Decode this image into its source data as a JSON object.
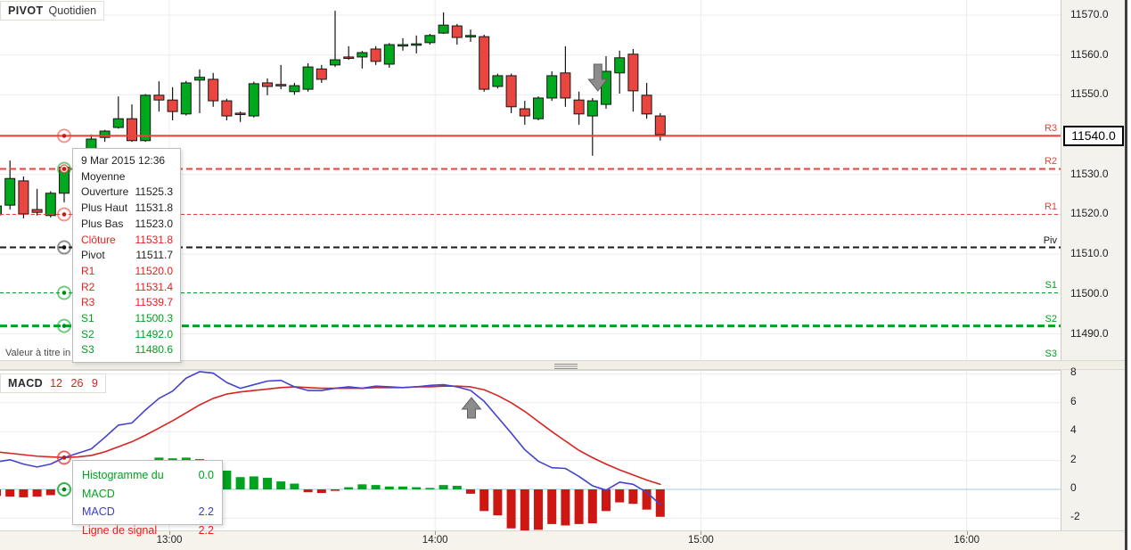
{
  "indicator_chip": {
    "title": "PIVOT",
    "subtitle": "Quotidien"
  },
  "macd_chip": {
    "title": "MACD",
    "params": "12 26 9"
  },
  "disclaimer": "Valeur à titre in",
  "current_price": "11540.0",
  "colors": {
    "candle_up": "#00a81e",
    "candle_down": "#e8463e",
    "candle_stroke": "#161616",
    "resistance": "#e8423c",
    "support": "#00a21f",
    "pivot": "#1a1a1a",
    "macd_line": "#4343cf",
    "signal_line": "#d62420",
    "hist_up": "#00a21f",
    "hist_down": "#cc1712",
    "grid": "#ececec",
    "zero_line": "#a9c7e4",
    "arrow": "#8c8c8c",
    "tooltip_red": "#ee1c1c",
    "tooltip_green": "#00a21f",
    "tooltip_blue": "#3c3ccc",
    "tooltip_black": "#222222"
  },
  "price_tooltip": {
    "rows": [
      {
        "label": "9 Mar 2015 12:36",
        "value": "",
        "color": "#222222"
      },
      {
        "label": "Moyenne",
        "value": "",
        "color": "#222222"
      },
      {
        "label": "Ouverture",
        "value": "11525.3",
        "color": "#222222"
      },
      {
        "label": "Plus Haut",
        "value": "11531.8",
        "color": "#222222"
      },
      {
        "label": "Plus Bas",
        "value": "11523.0",
        "color": "#222222"
      },
      {
        "label": "Clôture",
        "value": "11531.8",
        "color": "#ee1c1c"
      },
      {
        "label": "Pivot",
        "value": "11511.7",
        "color": "#222222"
      },
      {
        "label": "R1",
        "value": "11520.0",
        "color": "#ee1c1c"
      },
      {
        "label": "R2",
        "value": "11531.4",
        "color": "#ee1c1c"
      },
      {
        "label": "R3",
        "value": "11539.7",
        "color": "#ee1c1c"
      },
      {
        "label": "S1",
        "value": "11500.3",
        "color": "#00a21f"
      },
      {
        "label": "S2",
        "value": "11492.0",
        "color": "#00a21f"
      },
      {
        "label": "S3",
        "value": "11480.6",
        "color": "#00a21f"
      }
    ]
  },
  "macd_tooltip": {
    "rows": [
      {
        "label": "Histogramme du MACD",
        "value": "0.0",
        "color": "#00a21f"
      },
      {
        "label": "MACD",
        "value": "2.2",
        "color": "#3c3ccc"
      },
      {
        "label": "Ligne de signal",
        "value": "2.2",
        "color": "#ee1c1c"
      }
    ]
  },
  "time_axis": {
    "labels": [
      "13:00",
      "14:00",
      "15:00",
      "16:00"
    ],
    "minutes": [
      780,
      840,
      900,
      960
    ]
  },
  "crosshair_markers": {
    "candle_index": 5,
    "price": [
      {
        "price": 11539.7,
        "ring": "#e8423c",
        "dot": "#cc1712"
      },
      {
        "price": 11531.4,
        "ring": "#00a21f",
        "ring2": "#e8423c",
        "dot": "#cc1712"
      },
      {
        "price": 11520.0,
        "ring": "#e8423c",
        "dot": "#cc1712"
      },
      {
        "price": 11511.7,
        "ring": "#333333",
        "dot": "#111111"
      },
      {
        "price": 11500.3,
        "ring": "#00a21f",
        "dot": "#008a18"
      },
      {
        "price": 11492.0,
        "ring": "#00a21f",
        "dot": "#008a18"
      }
    ],
    "macd": [
      {
        "value": 2.2,
        "ring": "#e8423c",
        "dot": "#cc1712"
      },
      {
        "value": 0.0,
        "ring": "#00a21f",
        "dot": "#008a18"
      }
    ]
  },
  "chart_data": [
    {
      "type": "candlestick",
      "title": "PIVOT Quotidien",
      "interval_minutes": 3,
      "date": "9 Mar 2015",
      "ylim": [
        11483,
        11574
      ],
      "y_ticks": [
        "11570.0",
        "11560.0",
        "11550.0",
        "11540.0",
        "11530.0",
        "11520.0",
        "11510.0",
        "11500.0",
        "11490.0"
      ],
      "last_price": 11540.0,
      "pivot_lines": [
        {
          "label": "R3",
          "value": 11539.7,
          "color": "#e8423c",
          "style": "solid",
          "width": 2
        },
        {
          "label": "R2",
          "value": 11531.4,
          "color": "#e8423c",
          "style": "dashed",
          "width": 2
        },
        {
          "label": "R1",
          "value": 11520.0,
          "color": "#e8423c",
          "style": "dashed",
          "width": 1
        },
        {
          "label": "Piv",
          "value": 11511.7,
          "color": "#1a1a1a",
          "style": "dashed",
          "width": 2
        },
        {
          "label": "S1",
          "value": 11500.3,
          "color": "#00a21f",
          "style": "dashed",
          "width": 1
        },
        {
          "label": "S2",
          "value": 11492.0,
          "color": "#00a21f",
          "style": "dashed",
          "width": 3
        },
        {
          "label": "S3",
          "value": 11480.6,
          "color": "#00a21f",
          "style": "dashed",
          "width": 2
        }
      ],
      "times": [
        "12:21",
        "12:24",
        "12:27",
        "12:30",
        "12:33",
        "12:36",
        "12:39",
        "12:42",
        "12:45",
        "12:48",
        "12:51",
        "12:54",
        "12:57",
        "13:00",
        "13:03",
        "13:06",
        "13:09",
        "13:12",
        "13:15",
        "13:18",
        "13:21",
        "13:24",
        "13:27",
        "13:30",
        "13:33",
        "13:36",
        "13:39",
        "13:42",
        "13:45",
        "13:48",
        "13:51",
        "13:54",
        "13:57",
        "14:00",
        "14:03",
        "14:06",
        "14:09",
        "14:12",
        "14:15",
        "14:18",
        "14:21",
        "14:24",
        "14:27",
        "14:30",
        "14:33",
        "14:36",
        "14:39",
        "14:42",
        "14:45",
        "14:48"
      ],
      "ohlc": [
        [
          11519.9,
          11522.4,
          11519.4,
          11522.1
        ],
        [
          11522.3,
          11533.5,
          11521.2,
          11529.0
        ],
        [
          11528.4,
          11529.5,
          11519.0,
          11520.1
        ],
        [
          11521.2,
          11526.4,
          11519.7,
          11520.5
        ],
        [
          11519.7,
          11525.8,
          11519.2,
          11525.3
        ],
        [
          11525.3,
          11531.8,
          11523.0,
          11531.8
        ],
        [
          11531.8,
          11536.5,
          11530.0,
          11535.8
        ],
        [
          11535.8,
          11540.0,
          11534.5,
          11538.9
        ],
        [
          11539.3,
          11541.2,
          11538.2,
          11540.9
        ],
        [
          11541.8,
          11549.6,
          11541.5,
          11544.0
        ],
        [
          11544.0,
          11547.6,
          11538.2,
          11538.5
        ],
        [
          11538.5,
          11550.2,
          11538.2,
          11549.9
        ],
        [
          11549.9,
          11553.4,
          11545.8,
          11548.7
        ],
        [
          11548.7,
          11551.9,
          11543.6,
          11545.8
        ],
        [
          11545.2,
          11553.5,
          11544.8,
          11553.0
        ],
        [
          11553.7,
          11556.4,
          11545.4,
          11554.4
        ],
        [
          11553.9,
          11555.5,
          11547.0,
          11548.5
        ],
        [
          11548.5,
          11549.0,
          11543.6,
          11544.7
        ],
        [
          11545.4,
          11545.8,
          11543.2,
          11545.2
        ],
        [
          11544.7,
          11553.3,
          11544.3,
          11552.8
        ],
        [
          11553.0,
          11554.1,
          11549.9,
          11552.1
        ],
        [
          11552.6,
          11557.5,
          11551.4,
          11552.4
        ],
        [
          11550.8,
          11553.0,
          11550.0,
          11552.3
        ],
        [
          11551.4,
          11557.9,
          11550.8,
          11557.0
        ],
        [
          11556.5,
          11557.5,
          11553.0,
          11553.9
        ],
        [
          11557.5,
          11571.1,
          11557.0,
          11558.8
        ],
        [
          11559.5,
          11562.2,
          11558.8,
          11559.3
        ],
        [
          11559.5,
          11561.0,
          11556.6,
          11560.6
        ],
        [
          11561.5,
          11562.2,
          11557.5,
          11558.4
        ],
        [
          11557.7,
          11563.0,
          11556.8,
          11562.6
        ],
        [
          11562.4,
          11564.2,
          11561.1,
          11562.6
        ],
        [
          11562.6,
          11564.9,
          11560.4,
          11562.8
        ],
        [
          11563.1,
          11565.3,
          11562.6,
          11564.9
        ],
        [
          11565.5,
          11570.7,
          11565.3,
          11567.5
        ],
        [
          11567.3,
          11567.8,
          11562.6,
          11564.4
        ],
        [
          11564.7,
          11566.4,
          11563.3,
          11564.9
        ],
        [
          11564.6,
          11565.1,
          11550.8,
          11551.4
        ],
        [
          11552.1,
          11555.3,
          11551.6,
          11554.8
        ],
        [
          11554.8,
          11555.3,
          11545.4,
          11547.0
        ],
        [
          11546.5,
          11548.5,
          11542.5,
          11544.7
        ],
        [
          11544.0,
          11549.6,
          11543.6,
          11549.2
        ],
        [
          11549.2,
          11555.9,
          11548.5,
          11554.8
        ],
        [
          11555.5,
          11562.2,
          11547.0,
          11549.2
        ],
        [
          11548.7,
          11550.8,
          11542.5,
          11545.2
        ],
        [
          11544.7,
          11549.2,
          11534.7,
          11548.5
        ],
        [
          11547.6,
          11559.7,
          11546.5,
          11555.9
        ],
        [
          11555.5,
          11561.1,
          11550.3,
          11559.3
        ],
        [
          11560.2,
          11561.5,
          11545.8,
          11551.0
        ],
        [
          11549.9,
          11553.0,
          11544.0,
          11545.2
        ],
        [
          11544.7,
          11545.4,
          11538.5,
          11540.0
        ]
      ],
      "annotations": [
        {
          "shape": "arrow-down",
          "candle_index": 44,
          "color": "#8c8c8c"
        }
      ]
    },
    {
      "type": "macd",
      "params": {
        "fast": 12,
        "slow": 26,
        "signal": 9
      },
      "y_ticks": [
        8,
        6,
        4,
        2,
        0,
        -2
      ],
      "series": [
        {
          "name": "MACD",
          "style": "line",
          "color": "#4343cf",
          "values": [
            1.9,
            2.05,
            1.75,
            1.55,
            1.75,
            2.2,
            2.5,
            2.8,
            3.6,
            4.45,
            4.6,
            5.5,
            6.3,
            6.8,
            7.7,
            8.15,
            8.05,
            7.4,
            7.0,
            7.25,
            7.5,
            7.55,
            7.1,
            6.85,
            6.85,
            7.0,
            7.1,
            7.0,
            7.15,
            7.1,
            7.05,
            7.1,
            7.2,
            7.25,
            7.1,
            6.85,
            6.1,
            5.0,
            3.9,
            2.75,
            1.95,
            1.5,
            1.45,
            0.9,
            0.25,
            -0.05,
            0.5,
            0.35,
            -0.2,
            -1.05
          ]
        },
        {
          "name": "Ligne de signal",
          "style": "line",
          "color": "#d62420",
          "values": [
            2.6,
            2.5,
            2.4,
            2.3,
            2.25,
            2.2,
            2.25,
            2.35,
            2.6,
            2.95,
            3.3,
            3.75,
            4.25,
            4.75,
            5.3,
            5.85,
            6.3,
            6.6,
            6.75,
            6.85,
            6.95,
            7.05,
            7.1,
            7.05,
            7.0,
            7.0,
            7.0,
            7.0,
            7.05,
            7.05,
            7.05,
            7.1,
            7.1,
            7.15,
            7.15,
            7.1,
            6.9,
            6.5,
            6.0,
            5.4,
            4.7,
            4.0,
            3.35,
            2.7,
            2.2,
            1.75,
            1.35,
            1.0,
            0.65,
            0.35
          ]
        },
        {
          "name": "Histogramme du MACD",
          "style": "bar",
          "color_up": "#00a21f",
          "color_down": "#cc1712",
          "values": [
            -0.45,
            -0.5,
            -0.55,
            -0.5,
            -0.4,
            0.0,
            0.3,
            0.6,
            1.0,
            1.4,
            1.6,
            1.9,
            2.2,
            2.15,
            2.2,
            2.1,
            1.6,
            1.3,
            0.85,
            0.9,
            0.8,
            0.55,
            0.4,
            -0.2,
            -0.25,
            -0.1,
            0.15,
            0.35,
            0.3,
            0.2,
            0.2,
            0.15,
            0.1,
            0.3,
            0.25,
            -0.3,
            -1.5,
            -1.8,
            -2.7,
            -2.9,
            -2.8,
            -2.4,
            -2.5,
            -2.4,
            -2.35,
            -1.5,
            -0.9,
            -1.0,
            -1.4,
            -1.9
          ]
        }
      ],
      "annotations": [
        {
          "shape": "arrow-up",
          "candle_index": 35,
          "color": "#8c8c8c"
        }
      ]
    }
  ]
}
